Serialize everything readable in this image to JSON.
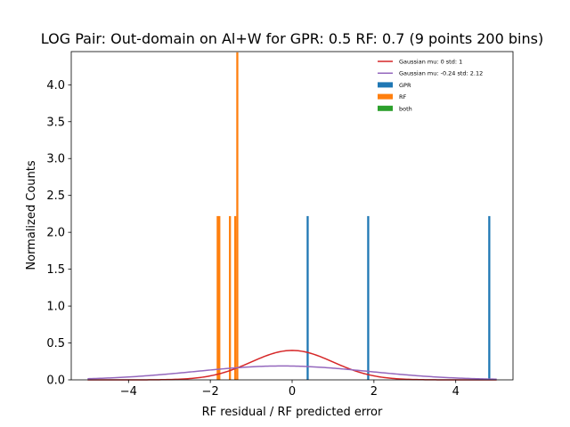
{
  "chart_data": {
    "type": "bar",
    "title": "LOG Pair: Out-domain on Al+W for GPR: 0.5 RF: 0.7 (9 points 200 bins)",
    "xlabel": "RF residual / RF predicted error",
    "ylabel": "Normalized Counts",
    "xlim": [
      -5.4,
      5.4
    ],
    "ylim": [
      0,
      4.45
    ],
    "x_ticks": [
      -4,
      -2,
      0,
      2,
      4
    ],
    "x_tick_labels": [
      "−4",
      "−2",
      "0",
      "2",
      "4"
    ],
    "y_ticks": [
      0.0,
      0.5,
      1.0,
      1.5,
      2.0,
      2.5,
      3.0,
      3.5,
      4.0
    ],
    "y_tick_labels": [
      "0.0",
      "0.5",
      "1.0",
      "1.5",
      "2.0",
      "2.5",
      "3.0",
      "3.5",
      "4.0"
    ],
    "grid": false,
    "legend_position": "top-right",
    "bin_width": 0.05,
    "series": [
      {
        "name": "Gaussian mu: 0 std: 1",
        "kind": "line",
        "color": "#d62728",
        "mu": 0,
        "std": 1,
        "x_range": [
          -5,
          5
        ]
      },
      {
        "name": "Gaussian mu: -0.24 std: 2.12",
        "kind": "line",
        "color": "#9467bd",
        "mu": -0.24,
        "std": 2.12,
        "x_range": [
          -5,
          5
        ]
      },
      {
        "name": "GPR",
        "kind": "bar",
        "color": "#1f77b4",
        "bars": [
          {
            "x": 0.38,
            "height": 2.22
          },
          {
            "x": 1.86,
            "height": 2.22
          },
          {
            "x": 4.82,
            "height": 2.22
          }
        ]
      },
      {
        "name": "RF",
        "kind": "bar",
        "color": "#ff7f0e",
        "bars": [
          {
            "x": -1.82,
            "height": 2.22
          },
          {
            "x": -1.78,
            "height": 2.22
          },
          {
            "x": -1.52,
            "height": 2.22
          },
          {
            "x": -1.39,
            "height": 2.22
          },
          {
            "x": -1.34,
            "height": 4.44
          }
        ]
      },
      {
        "name": "both",
        "kind": "bar",
        "color": "#2ca02c",
        "bars": []
      }
    ]
  }
}
